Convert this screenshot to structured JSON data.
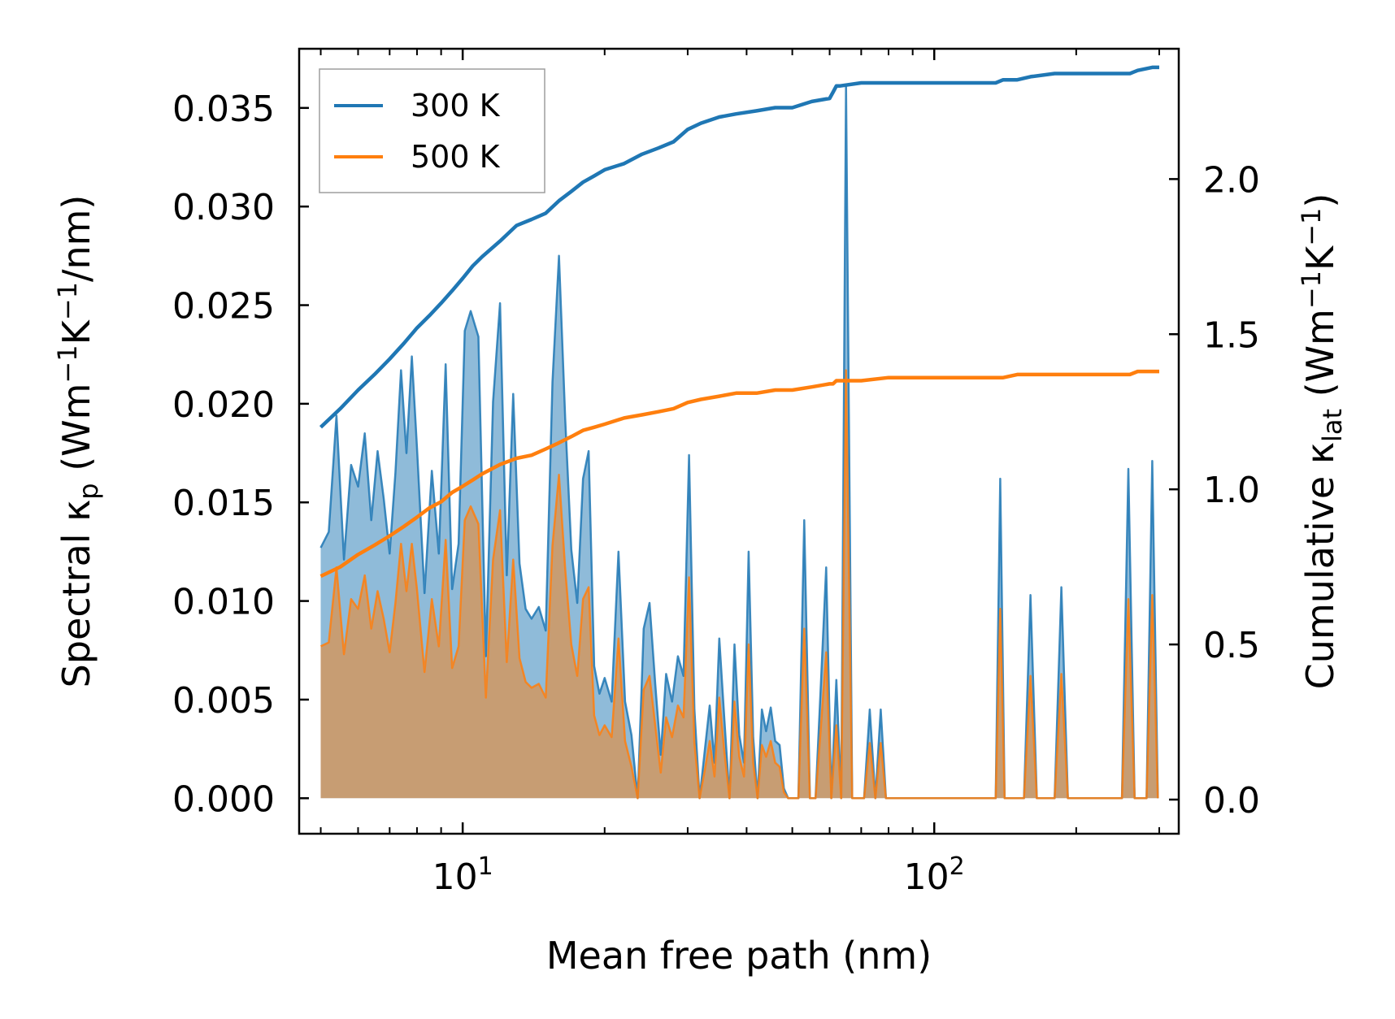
{
  "chart_data": {
    "type": "line",
    "x_scale": "log",
    "xlim": [
      4.5,
      330
    ],
    "ylim_left": [
      -0.0018,
      0.038
    ],
    "ylim_right": [
      -0.11,
      2.42
    ],
    "xlabel": "Mean free path (nm)",
    "ylabel_left": {
      "base": "Spectral κ",
      "sub": "p",
      "unit_open": " (Wm",
      "exp1": "−1",
      "k": "K",
      "exp2": "−1",
      "unit_close": "/nm)"
    },
    "ylabel_right": {
      "base": "Cumulative κ",
      "sub": "lat",
      "unit_open": " (Wm",
      "exp1": "−1",
      "k": "K",
      "exp2": "−1",
      "unit_close": ")"
    },
    "x_ticks": [
      {
        "value": 10,
        "base": "10",
        "exp": "1"
      },
      {
        "value": 100,
        "base": "10",
        "exp": "2"
      }
    ],
    "y_left_ticks": [
      {
        "value": 0.0,
        "label": "0.000"
      },
      {
        "value": 0.005,
        "label": "0.005"
      },
      {
        "value": 0.01,
        "label": "0.010"
      },
      {
        "value": 0.015,
        "label": "0.015"
      },
      {
        "value": 0.02,
        "label": "0.020"
      },
      {
        "value": 0.025,
        "label": "0.025"
      },
      {
        "value": 0.03,
        "label": "0.030"
      },
      {
        "value": 0.035,
        "label": "0.035"
      }
    ],
    "y_right_ticks": [
      {
        "value": 0.0,
        "label": "0.0"
      },
      {
        "value": 0.5,
        "label": "0.5"
      },
      {
        "value": 1.0,
        "label": "1.0"
      },
      {
        "value": 1.5,
        "label": "1.5"
      },
      {
        "value": 2.0,
        "label": "2.0"
      }
    ],
    "legend": {
      "location": "upper left",
      "entries": [
        {
          "label": "300 K",
          "color": "#1f77b4"
        },
        {
          "label": "500 K",
          "color": "#ff7f0e"
        }
      ]
    },
    "colors": {
      "c300": "#1f77b4",
      "c500": "#ff7f0e"
    },
    "series": [
      {
        "name": "300 K spectral",
        "axis": "left",
        "kind": "filled-spectrum",
        "color": "#1f77b4",
        "x": [
          5.0,
          5.2,
          5.4,
          5.6,
          5.8,
          6.0,
          6.2,
          6.4,
          6.6,
          6.8,
          7.0,
          7.2,
          7.4,
          7.6,
          7.8,
          8.0,
          8.3,
          8.6,
          8.9,
          9.2,
          9.5,
          9.8,
          10.1,
          10.4,
          10.8,
          11.2,
          11.6,
          12.0,
          12.4,
          12.8,
          13.2,
          13.6,
          14.0,
          14.5,
          15.0,
          15.5,
          16.0,
          16.5,
          17.0,
          17.5,
          18.0,
          18.5,
          19.0,
          19.5,
          20.0,
          20.7,
          21.4,
          22.1,
          22.8,
          23.5,
          24.2,
          24.9,
          25.6,
          26.3,
          27.0,
          27.8,
          28.6,
          29.4,
          30.2,
          31.0,
          31.8,
          32.6,
          33.4,
          34.2,
          35.0,
          35.9,
          36.8,
          37.7,
          38.6,
          39.5,
          40.4,
          41.3,
          42.2,
          43.1,
          44.0,
          45.0,
          46.0,
          47.0,
          48.0,
          49.0,
          50.0,
          51.5,
          53.0,
          54.5,
          56.0,
          57.5,
          59.0,
          60.5,
          62.0,
          63.5,
          65.0,
          67.0,
          69.0,
          71.0,
          73.0,
          75.0,
          77.0,
          79.0,
          81.0,
          100.0,
          135.0,
          138.0,
          141.0,
          155.0,
          160.0,
          165.0,
          180.0,
          186.0,
          192.0,
          250.0,
          258.0,
          266.0,
          272.0,
          282.0,
          290.0,
          298.0
        ],
        "y": [
          0.0127,
          0.0135,
          0.0194,
          0.0121,
          0.0169,
          0.0158,
          0.0185,
          0.0141,
          0.0176,
          0.0152,
          0.0124,
          0.0165,
          0.0217,
          0.0175,
          0.0224,
          0.0178,
          0.0104,
          0.0166,
          0.0124,
          0.022,
          0.0106,
          0.0129,
          0.0237,
          0.0247,
          0.0234,
          0.0072,
          0.0201,
          0.0251,
          0.0113,
          0.0205,
          0.0119,
          0.0096,
          0.0091,
          0.0097,
          0.0085,
          0.0211,
          0.0275,
          0.0192,
          0.0126,
          0.0099,
          0.0162,
          0.0176,
          0.0067,
          0.0053,
          0.0061,
          0.0049,
          0.0125,
          0.0049,
          0.0032,
          0.0,
          0.0086,
          0.0099,
          0.0058,
          0.0022,
          0.0063,
          0.0049,
          0.0072,
          0.0062,
          0.0174,
          0.0045,
          0.0,
          0.0024,
          0.0047,
          0.0018,
          0.0081,
          0.0039,
          0.0,
          0.0078,
          0.0032,
          0.0018,
          0.0125,
          0.0031,
          0.0,
          0.0045,
          0.0034,
          0.0046,
          0.0029,
          0.0027,
          0.0005,
          0.0,
          0.0,
          0.0,
          0.0141,
          0.0,
          0.0,
          0.0058,
          0.0117,
          0.0,
          0.006,
          0.0,
          0.0362,
          0.0,
          0.0,
          0.0,
          0.0045,
          0.0,
          0.0045,
          0.0,
          0.0,
          0.0,
          0.0,
          0.0162,
          0.0,
          0.0,
          0.0103,
          0.0,
          0.0,
          0.0107,
          0.0,
          0.0,
          0.0167,
          0.0,
          0.0,
          0.0,
          0.0171,
          0.0
        ]
      },
      {
        "name": "500 K spectral",
        "axis": "left",
        "kind": "filled-spectrum",
        "color": "#ff7f0e",
        "x": [
          5.0,
          5.2,
          5.4,
          5.6,
          5.8,
          6.0,
          6.2,
          6.4,
          6.6,
          6.8,
          7.0,
          7.2,
          7.4,
          7.6,
          7.8,
          8.0,
          8.3,
          8.6,
          8.9,
          9.2,
          9.5,
          9.8,
          10.1,
          10.4,
          10.8,
          11.2,
          11.6,
          12.0,
          12.4,
          12.8,
          13.2,
          13.6,
          14.0,
          14.5,
          15.0,
          15.5,
          16.0,
          16.5,
          17.0,
          17.5,
          18.0,
          18.5,
          19.0,
          19.5,
          20.0,
          20.7,
          21.4,
          22.1,
          22.8,
          23.5,
          24.2,
          24.9,
          25.6,
          26.3,
          27.0,
          27.8,
          28.6,
          29.4,
          30.2,
          31.0,
          31.8,
          32.6,
          33.4,
          34.2,
          35.0,
          35.9,
          36.8,
          37.7,
          38.6,
          39.5,
          40.4,
          41.3,
          42.2,
          43.1,
          44.0,
          45.0,
          46.0,
          47.0,
          48.0,
          49.0,
          50.0,
          51.5,
          53.0,
          54.5,
          56.0,
          57.5,
          59.0,
          60.5,
          62.0,
          63.5,
          65.0,
          67.0,
          69.0,
          71.0,
          73.0,
          75.0,
          77.0,
          79.0,
          81.0,
          100.0,
          135.0,
          138.0,
          141.0,
          155.0,
          160.0,
          165.0,
          180.0,
          186.0,
          192.0,
          250.0,
          258.0,
          266.0,
          272.0,
          282.0,
          290.0,
          298.0
        ],
        "y": [
          0.0077,
          0.0079,
          0.0117,
          0.0073,
          0.0101,
          0.0096,
          0.0113,
          0.0086,
          0.0105,
          0.0091,
          0.0074,
          0.0099,
          0.0129,
          0.0105,
          0.0129,
          0.0106,
          0.0064,
          0.0101,
          0.0077,
          0.0131,
          0.0066,
          0.0077,
          0.0141,
          0.0148,
          0.0139,
          0.0051,
          0.0121,
          0.0146,
          0.0069,
          0.0121,
          0.0071,
          0.0059,
          0.0056,
          0.0058,
          0.0051,
          0.0128,
          0.0164,
          0.0116,
          0.0078,
          0.0062,
          0.0101,
          0.0107,
          0.0042,
          0.0032,
          0.0037,
          0.0031,
          0.0081,
          0.0029,
          0.0016,
          0.0,
          0.0055,
          0.0062,
          0.0037,
          0.0013,
          0.0041,
          0.0031,
          0.0047,
          0.0041,
          0.0112,
          0.0028,
          0.0,
          0.0014,
          0.0029,
          0.0011,
          0.0051,
          0.0023,
          0.0,
          0.0049,
          0.0021,
          0.0011,
          0.0078,
          0.0018,
          0.0,
          0.0027,
          0.0021,
          0.0029,
          0.0018,
          0.0016,
          0.0003,
          0.0,
          0.0,
          0.0,
          0.0086,
          0.0,
          0.0,
          0.0036,
          0.0074,
          0.0,
          0.0037,
          0.0,
          0.0217,
          0.0,
          0.0,
          0.0,
          0.0028,
          0.0,
          0.0028,
          0.0,
          0.0,
          0.0,
          0.0,
          0.0096,
          0.0,
          0.0,
          0.0062,
          0.0,
          0.0,
          0.0063,
          0.0,
          0.0,
          0.0101,
          0.0,
          0.0,
          0.0,
          0.0103,
          0.0
        ]
      },
      {
        "name": "300 K cumulative",
        "axis": "right",
        "kind": "line",
        "color": "#1f77b4",
        "x": [
          5.0,
          5.5,
          6.0,
          6.5,
          7.0,
          7.5,
          8.0,
          8.5,
          9.0,
          9.5,
          10.0,
          10.5,
          11.0,
          12.0,
          13.0,
          14.0,
          15.0,
          16.0,
          17.0,
          18.0,
          19.0,
          20.0,
          22.0,
          24.0,
          26.0,
          28.0,
          30.0,
          32.0,
          35.0,
          38.0,
          42.0,
          46.0,
          50.0,
          55.0,
          60.0,
          61.0,
          62.0,
          63.0,
          70.0,
          80.0,
          135.0,
          140.0,
          150.0,
          160.0,
          180.0,
          190.0,
          260.0,
          270.0,
          290.0,
          300.0
        ],
        "y": [
          1.2,
          1.26,
          1.32,
          1.37,
          1.42,
          1.47,
          1.52,
          1.56,
          1.6,
          1.64,
          1.68,
          1.72,
          1.75,
          1.8,
          1.85,
          1.87,
          1.89,
          1.93,
          1.96,
          1.99,
          2.01,
          2.03,
          2.05,
          2.08,
          2.1,
          2.12,
          2.16,
          2.18,
          2.2,
          2.21,
          2.22,
          2.23,
          2.23,
          2.25,
          2.26,
          2.28,
          2.3,
          2.3,
          2.31,
          2.31,
          2.31,
          2.32,
          2.32,
          2.33,
          2.34,
          2.34,
          2.34,
          2.35,
          2.36,
          2.36
        ]
      },
      {
        "name": "500 K cumulative",
        "axis": "right",
        "kind": "line",
        "color": "#ff7f0e",
        "x": [
          5.0,
          5.5,
          6.0,
          6.5,
          7.0,
          7.5,
          8.0,
          8.5,
          9.0,
          9.5,
          10.0,
          10.5,
          11.0,
          12.0,
          13.0,
          14.0,
          15.0,
          16.0,
          17.0,
          18.0,
          19.0,
          20.0,
          22.0,
          24.0,
          26.0,
          28.0,
          30.0,
          32.0,
          35.0,
          38.0,
          42.0,
          46.0,
          50.0,
          55.0,
          60.0,
          61.0,
          62.0,
          63.0,
          70.0,
          80.0,
          135.0,
          140.0,
          150.0,
          160.0,
          180.0,
          190.0,
          260.0,
          270.0,
          290.0,
          300.0
        ],
        "y": [
          0.72,
          0.75,
          0.79,
          0.82,
          0.85,
          0.88,
          0.91,
          0.94,
          0.96,
          0.99,
          1.01,
          1.03,
          1.05,
          1.08,
          1.1,
          1.11,
          1.13,
          1.15,
          1.17,
          1.19,
          1.2,
          1.21,
          1.23,
          1.24,
          1.25,
          1.26,
          1.28,
          1.29,
          1.3,
          1.31,
          1.31,
          1.32,
          1.32,
          1.33,
          1.34,
          1.34,
          1.35,
          1.35,
          1.35,
          1.36,
          1.36,
          1.36,
          1.37,
          1.37,
          1.37,
          1.37,
          1.37,
          1.38,
          1.38,
          1.38
        ]
      }
    ]
  }
}
